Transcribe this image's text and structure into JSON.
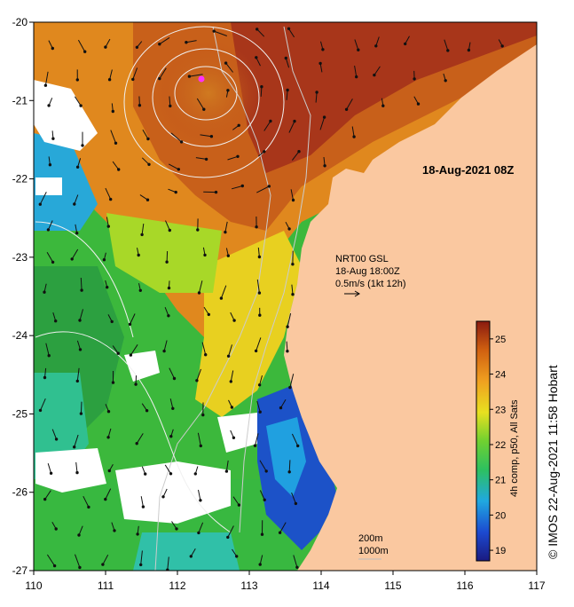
{
  "map": {
    "title": "18-Aug-2021 08Z",
    "current_product": "NRT00 GSL",
    "current_time": "18-Aug 18:00Z",
    "vector_scale": "0.5m/s (1kt 12h)",
    "contour_200": "200m",
    "contour_1000": "1000m",
    "x_ticks": [
      "110",
      "111",
      "112",
      "113",
      "114",
      "115",
      "116",
      "117"
    ],
    "y_ticks": [
      "-20",
      "-21",
      "-22",
      "-23",
      "-24",
      "-25",
      "-26",
      "-27"
    ],
    "colorbar": {
      "label": "4h comp, p50, All Sats",
      "ticks": [
        "25",
        "24",
        "23",
        "22",
        "21",
        "20",
        "19"
      ],
      "range": [
        18.7,
        25.5
      ]
    },
    "credit": "© IMOS 22-Aug-2021 11:58 Hobart",
    "colors": {
      "land": "#fac8a0",
      "cloud": "#ffffff",
      "warm": "#c0461a",
      "cool": "#1e50c8",
      "marker": "#ff30ff"
    }
  }
}
